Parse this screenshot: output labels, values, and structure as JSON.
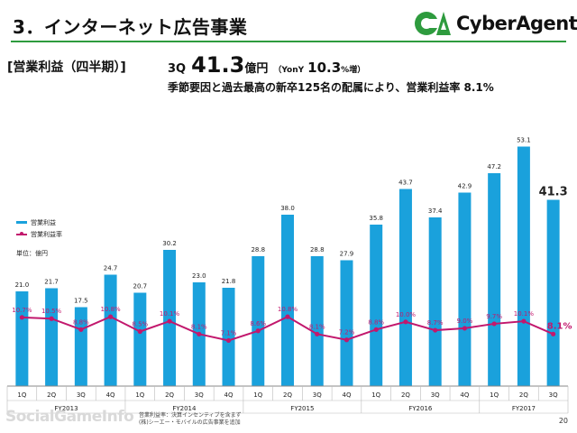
{
  "slide": {
    "title": "3．インターネット広告事業",
    "section_label": "[営業利益（四半期）]",
    "headline": {
      "quarter": "3Q",
      "value": "41.3",
      "unit": "億円",
      "yoy_label": "（YonY",
      "yoy_value": "10.3",
      "yoy_unit": "%増）"
    },
    "subheadline": "季節要因と過去最高の新卒125名の配属により、営業利益率 8.1%",
    "page_number": "20"
  },
  "logo": {
    "text": "CyberAgent",
    "colors": {
      "green": "#2e9b3e",
      "dark_green": "#1c6e2a"
    }
  },
  "legend": {
    "bar_label": "営業利益",
    "line_label": "営業利益率",
    "unit_label": "単位：億円"
  },
  "footnote": {
    "line1": "営業利益率：決算インセンティブを含まず",
    "line2": "(株)シーエー・モバイルの広告事業を追加"
  },
  "watermark": {
    "text": "SocialGameInfo"
  },
  "colors": {
    "bar": "#1aa1dc",
    "line": "#c2186d",
    "last_label": "#c2186d"
  },
  "chart_data": {
    "type": "bar",
    "categories": [
      "1Q",
      "2Q",
      "3Q",
      "4Q",
      "1Q",
      "2Q",
      "3Q",
      "4Q",
      "1Q",
      "2Q",
      "3Q",
      "4Q",
      "1Q",
      "2Q",
      "3Q",
      "4Q",
      "1Q",
      "2Q",
      "3Q"
    ],
    "fiscal_years": [
      {
        "label": "FY2013",
        "count": 4
      },
      {
        "label": "FY2014",
        "count": 4
      },
      {
        "label": "FY2015",
        "count": 4
      },
      {
        "label": "FY2016",
        "count": 4
      },
      {
        "label": "FY2017",
        "count": 3
      }
    ],
    "series": [
      {
        "name": "営業利益",
        "type": "bar",
        "values": [
          21.0,
          21.7,
          17.5,
          24.7,
          20.7,
          30.2,
          23.0,
          21.8,
          28.8,
          38.0,
          28.8,
          27.9,
          35.8,
          43.7,
          37.4,
          42.9,
          47.2,
          53.1,
          41.3
        ],
        "labels": [
          "21.0",
          "21.7",
          "17.5",
          "24.7",
          "20.7",
          "30.2",
          "23.0",
          "21.8",
          "28.8",
          "38.0",
          "28.8",
          "27.9",
          "35.8",
          "43.7",
          "37.4",
          "42.9",
          "47.2",
          "53.1",
          "41.3"
        ]
      },
      {
        "name": "営業利益率",
        "type": "line",
        "values": [
          10.7,
          10.5,
          8.8,
          10.8,
          8.5,
          10.1,
          8.1,
          7.1,
          8.6,
          10.8,
          8.1,
          7.2,
          8.8,
          10.0,
          8.7,
          9.0,
          9.7,
          10.1,
          8.1
        ],
        "labels": [
          "10.7%",
          "10.5%",
          "8.8%",
          "10.8%",
          "8.5%",
          "10.1%",
          "8.1%",
          "7.1%",
          "8.6%",
          "10.8%",
          "8.1%",
          "7.2%",
          "8.8%",
          "10.0%",
          "8.7%",
          "9.0%",
          "9.7%",
          "10.1%",
          "8.1%"
        ]
      }
    ],
    "ylim": [
      0,
      60
    ],
    "line_ylim": [
      0,
      25
    ],
    "grid": false
  }
}
